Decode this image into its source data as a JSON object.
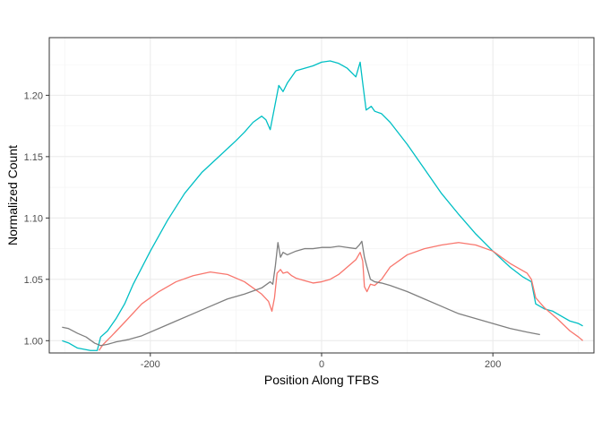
{
  "chart_data": {
    "type": "line",
    "title": "",
    "xlabel": "Position Along TFBS",
    "ylabel": "Normalized Count",
    "xlim": [
      -318,
      318
    ],
    "ylim": [
      0.99,
      1.247
    ],
    "x_ticks": [
      -200,
      0,
      200
    ],
    "x_tick_labels": [
      "-200",
      "0",
      "200"
    ],
    "y_ticks": [
      1.0,
      1.05,
      1.1,
      1.15,
      1.2
    ],
    "y_tick_labels": [
      "1.00",
      "1.05",
      "1.10",
      "1.15",
      "1.20"
    ],
    "grid": true,
    "legend": "none",
    "series": [
      {
        "color": "#00BFC4",
        "points": [
          [
            -303,
            1.0
          ],
          [
            -295,
            0.998
          ],
          [
            -285,
            0.994
          ],
          [
            -270,
            0.992
          ],
          [
            -262,
            0.992
          ],
          [
            -258,
            1.003
          ],
          [
            -250,
            1.008
          ],
          [
            -240,
            1.018
          ],
          [
            -230,
            1.03
          ],
          [
            -220,
            1.046
          ],
          [
            -200,
            1.073
          ],
          [
            -180,
            1.098
          ],
          [
            -160,
            1.12
          ],
          [
            -140,
            1.137
          ],
          [
            -120,
            1.15
          ],
          [
            -100,
            1.163
          ],
          [
            -90,
            1.17
          ],
          [
            -80,
            1.178
          ],
          [
            -70,
            1.183
          ],
          [
            -65,
            1.18
          ],
          [
            -60,
            1.172
          ],
          [
            -55,
            1.19
          ],
          [
            -50,
            1.208
          ],
          [
            -45,
            1.203
          ],
          [
            -40,
            1.21
          ],
          [
            -30,
            1.22
          ],
          [
            -20,
            1.222
          ],
          [
            -10,
            1.224
          ],
          [
            0,
            1.227
          ],
          [
            10,
            1.228
          ],
          [
            20,
            1.226
          ],
          [
            30,
            1.222
          ],
          [
            40,
            1.215
          ],
          [
            45,
            1.227
          ],
          [
            48,
            1.21
          ],
          [
            52,
            1.188
          ],
          [
            58,
            1.191
          ],
          [
            62,
            1.187
          ],
          [
            70,
            1.185
          ],
          [
            80,
            1.178
          ],
          [
            100,
            1.16
          ],
          [
            120,
            1.14
          ],
          [
            140,
            1.12
          ],
          [
            160,
            1.103
          ],
          [
            180,
            1.087
          ],
          [
            200,
            1.073
          ],
          [
            220,
            1.06
          ],
          [
            235,
            1.052
          ],
          [
            245,
            1.048
          ],
          [
            250,
            1.03
          ],
          [
            260,
            1.026
          ],
          [
            270,
            1.024
          ],
          [
            280,
            1.02
          ],
          [
            290,
            1.016
          ],
          [
            300,
            1.014
          ],
          [
            305,
            1.012
          ]
        ]
      },
      {
        "color": "#F8766D",
        "points": [
          [
            -260,
            0.992
          ],
          [
            -255,
            0.997
          ],
          [
            -245,
            1.004
          ],
          [
            -230,
            1.015
          ],
          [
            -210,
            1.03
          ],
          [
            -190,
            1.04
          ],
          [
            -170,
            1.048
          ],
          [
            -150,
            1.053
          ],
          [
            -130,
            1.056
          ],
          [
            -110,
            1.054
          ],
          [
            -90,
            1.048
          ],
          [
            -80,
            1.043
          ],
          [
            -70,
            1.038
          ],
          [
            -62,
            1.032
          ],
          [
            -58,
            1.024
          ],
          [
            -55,
            1.035
          ],
          [
            -52,
            1.055
          ],
          [
            -48,
            1.058
          ],
          [
            -45,
            1.055
          ],
          [
            -40,
            1.056
          ],
          [
            -35,
            1.053
          ],
          [
            -30,
            1.051
          ],
          [
            -20,
            1.049
          ],
          [
            -10,
            1.047
          ],
          [
            0,
            1.048
          ],
          [
            10,
            1.05
          ],
          [
            20,
            1.054
          ],
          [
            30,
            1.06
          ],
          [
            40,
            1.066
          ],
          [
            45,
            1.072
          ],
          [
            48,
            1.065
          ],
          [
            50,
            1.044
          ],
          [
            53,
            1.04
          ],
          [
            57,
            1.046
          ],
          [
            62,
            1.045
          ],
          [
            70,
            1.05
          ],
          [
            80,
            1.06
          ],
          [
            100,
            1.07
          ],
          [
            120,
            1.075
          ],
          [
            140,
            1.078
          ],
          [
            160,
            1.08
          ],
          [
            180,
            1.078
          ],
          [
            200,
            1.073
          ],
          [
            220,
            1.063
          ],
          [
            240,
            1.055
          ],
          [
            245,
            1.05
          ],
          [
            250,
            1.035
          ],
          [
            260,
            1.027
          ],
          [
            275,
            1.018
          ],
          [
            290,
            1.008
          ],
          [
            300,
            1.003
          ],
          [
            305,
            1.0
          ]
        ]
      },
      {
        "color": "#7F7F7F",
        "points": [
          [
            -303,
            1.011
          ],
          [
            -296,
            1.01
          ],
          [
            -285,
            1.006
          ],
          [
            -275,
            1.003
          ],
          [
            -265,
            0.998
          ],
          [
            -258,
            0.996
          ],
          [
            -250,
            0.997
          ],
          [
            -240,
            0.999
          ],
          [
            -225,
            1.001
          ],
          [
            -210,
            1.004
          ],
          [
            -190,
            1.01
          ],
          [
            -170,
            1.016
          ],
          [
            -150,
            1.022
          ],
          [
            -130,
            1.028
          ],
          [
            -110,
            1.034
          ],
          [
            -90,
            1.038
          ],
          [
            -70,
            1.043
          ],
          [
            -60,
            1.048
          ],
          [
            -57,
            1.046
          ],
          [
            -54,
            1.061
          ],
          [
            -51,
            1.08
          ],
          [
            -48,
            1.068
          ],
          [
            -45,
            1.072
          ],
          [
            -40,
            1.07
          ],
          [
            -30,
            1.073
          ],
          [
            -20,
            1.075
          ],
          [
            -10,
            1.075
          ],
          [
            0,
            1.076
          ],
          [
            10,
            1.076
          ],
          [
            20,
            1.077
          ],
          [
            30,
            1.076
          ],
          [
            40,
            1.075
          ],
          [
            44,
            1.078
          ],
          [
            47,
            1.081
          ],
          [
            50,
            1.068
          ],
          [
            53,
            1.06
          ],
          [
            57,
            1.05
          ],
          [
            62,
            1.048
          ],
          [
            70,
            1.047
          ],
          [
            80,
            1.045
          ],
          [
            100,
            1.04
          ],
          [
            120,
            1.034
          ],
          [
            140,
            1.028
          ],
          [
            160,
            1.022
          ],
          [
            180,
            1.018
          ],
          [
            200,
            1.014
          ],
          [
            220,
            1.01
          ],
          [
            240,
            1.007
          ],
          [
            255,
            1.005
          ]
        ]
      }
    ]
  }
}
